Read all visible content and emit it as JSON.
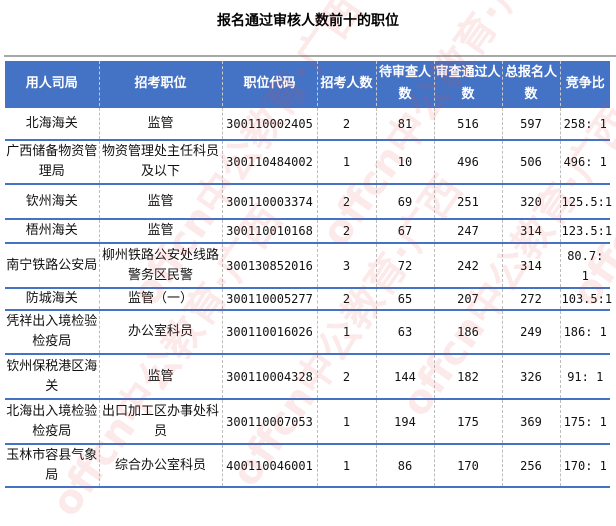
{
  "title": "报名通过审核人数前十的职位",
  "headers": [
    "用人司局",
    "招考职位",
    "职位代码",
    "招考人数",
    "待审查人数",
    "审查通过人数",
    "总报名人数",
    "竞争比"
  ],
  "rows": [
    [
      "北海海关",
      "监管",
      "300110002405",
      "2",
      "81",
      "516",
      "597",
      "258: 1"
    ],
    [
      "广西储备物资管理局",
      "物资管理处主任科员及以下",
      "300110484002",
      "1",
      "10",
      "496",
      "506",
      "496: 1"
    ],
    [
      "钦州海关",
      "监管",
      "300110003374",
      "2",
      "69",
      "251",
      "320",
      "125.5:1"
    ],
    [
      "梧州海关",
      "监管",
      "300110010168",
      "2",
      "67",
      "247",
      "314",
      "123.5:1"
    ],
    [
      "南宁铁路公安局",
      "柳州铁路公安处线路警务区民警",
      "300130852016",
      "3",
      "72",
      "242",
      "314",
      "80.7: 1"
    ],
    [
      "防城海关",
      "监管（一）",
      "300110005277",
      "2",
      "65",
      "207",
      "272",
      "103.5:1"
    ],
    [
      "凭祥出入境检验检疫局",
      "办公室科员",
      "300110016026",
      "1",
      "63",
      "186",
      "249",
      "186: 1"
    ],
    [
      "钦州保税港区海关",
      "监管",
      "300110004328",
      "2",
      "144",
      "182",
      "326",
      "91: 1"
    ],
    [
      "北海出入境检验检疫局",
      "出口加工区办事处科员",
      "300110007053",
      "1",
      "194",
      "175",
      "369",
      "175: 1"
    ],
    [
      "玉林市容县气象局",
      "综合办公室科员",
      "400110046001",
      "1",
      "86",
      "170",
      "256",
      "170: 1"
    ]
  ],
  "watermark": "offcn中公教育·广西",
  "colors": {
    "header_bg": "#4472c4",
    "header_text": "#ffffff",
    "border": "#4472c4"
  }
}
